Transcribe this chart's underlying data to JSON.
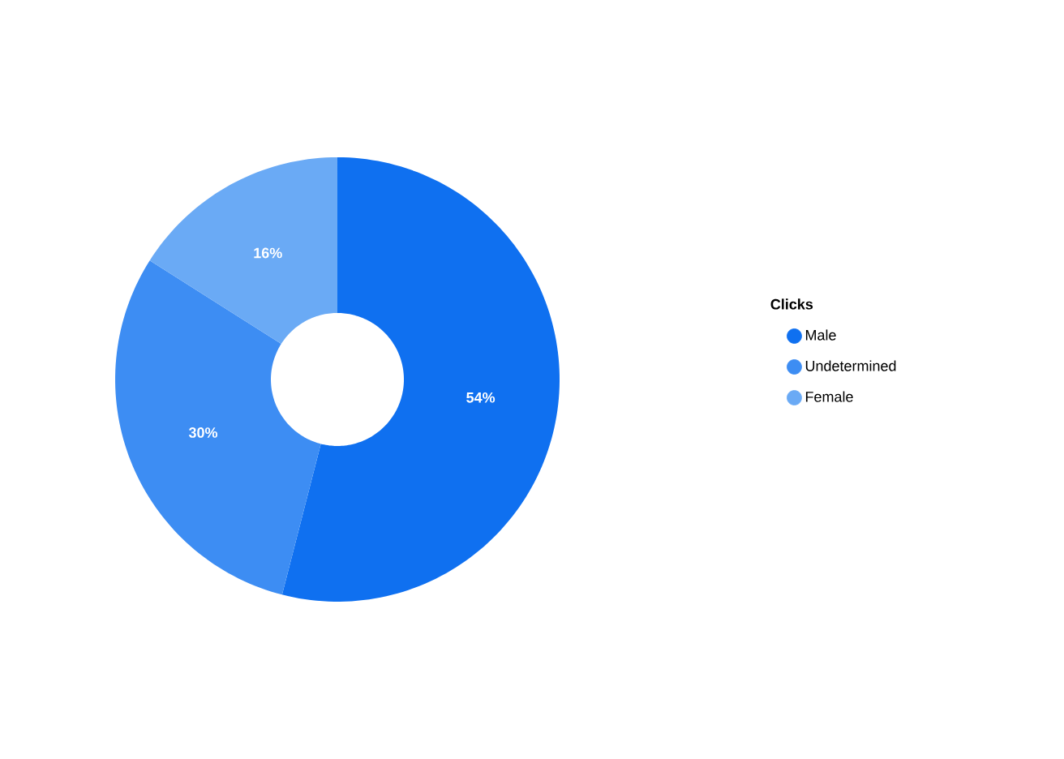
{
  "chart_data": {
    "type": "donut",
    "legend_title": "Clicks",
    "categories": [
      "Male",
      "Undetermined",
      "Female"
    ],
    "values": [
      54,
      30,
      16
    ],
    "colors": [
      "#0f70f0",
      "#3d8df3",
      "#6aaaf5"
    ],
    "value_labels": [
      "54%",
      "30%",
      "16%"
    ],
    "legend": "right"
  }
}
